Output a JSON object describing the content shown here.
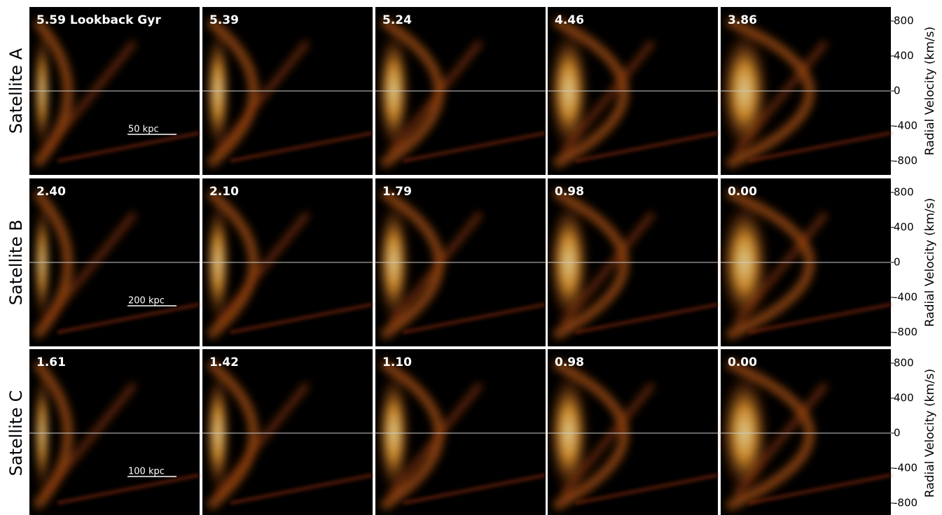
{
  "rows": [
    {
      "label": "Satellite A",
      "scale_bar": "50 kpc",
      "panels": [
        "5.59 Lookback Gyr",
        "5.39",
        "5.24",
        "4.46",
        "3.86"
      ]
    },
    {
      "label": "Satellite B",
      "scale_bar": "200 kpc",
      "panels": [
        "2.40",
        "2.10",
        "1.79",
        "0.98",
        "0.00"
      ]
    },
    {
      "label": "Satellite C",
      "scale_bar": "100 kpc",
      "panels": [
        "1.61",
        "1.42",
        "1.10",
        "0.98",
        "0.00"
      ]
    }
  ],
  "axis": {
    "title": "Radial Velocity (km/s)",
    "ticks": [
      800,
      400,
      0,
      -400,
      -800
    ]
  }
}
